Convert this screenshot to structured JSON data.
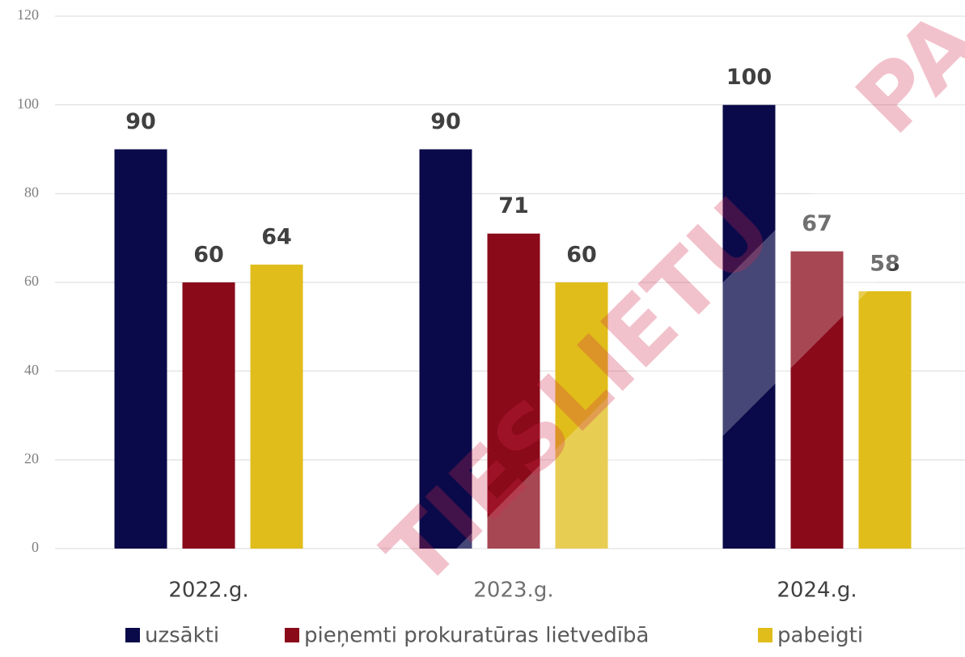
{
  "chart_data": {
    "type": "bar",
    "categories": [
      "2022.g.",
      "2023.g.",
      "2024.g."
    ],
    "series": [
      {
        "name": "uzsākti",
        "color": "#0a0a4a",
        "values": [
          90,
          90,
          100
        ]
      },
      {
        "name": "pieņemti prokuratūras lietvedībā",
        "color": "#8a0a1a",
        "values": [
          60,
          71,
          67
        ]
      },
      {
        "name": "pabeigti",
        "color": "#e0bd1a",
        "values": [
          64,
          60,
          58
        ]
      }
    ],
    "ylim": [
      0,
      120
    ],
    "yticks": [
      0,
      20,
      40,
      60,
      80,
      100,
      120
    ],
    "grid": true,
    "legend": "bottom",
    "watermark": [
      "TIESLIETU",
      "PA"
    ]
  }
}
